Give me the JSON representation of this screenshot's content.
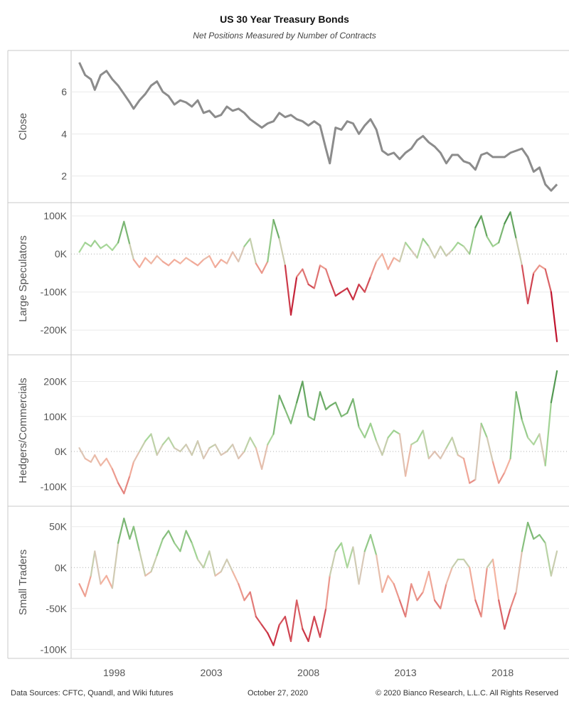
{
  "title": "US 30 Year Treasury Bonds",
  "subtitle": "Net Positions Measured by Number of Contracts",
  "footer": {
    "sources": "Data Sources: CFTC, Quandl, and Wiki futures",
    "date": "October 27, 2020",
    "copyright": "© 2020 Bianco Research, L.L.C. All Rights Reserved"
  },
  "colors": {
    "close_line": "#8c8c8c",
    "positive_dark": "#2e7d32",
    "positive_light": "#a8d89a",
    "negative_light": "#f4b3a0",
    "negative_dark": "#c0142e",
    "neutral": "#d8c8b8",
    "grid": "#eaeaea",
    "zero_line": "#b0b0b0"
  },
  "chart_data": [
    {
      "type": "line",
      "ylabel": "Close",
      "ylim": [
        1,
        7.7
      ],
      "yticks": [
        2,
        4,
        6
      ],
      "ytick_labels": [
        "2",
        "4",
        "6"
      ],
      "xlim": [
        1996.0,
        2021.2
      ],
      "color_mode": "solid",
      "x": [
        1996.2,
        1996.5,
        1996.8,
        1997.0,
        1997.3,
        1997.6,
        1997.9,
        1998.2,
        1998.5,
        1998.8,
        1999.0,
        1999.3,
        1999.6,
        1999.9,
        2000.2,
        2000.5,
        2000.8,
        2001.1,
        2001.4,
        2001.7,
        2002.0,
        2002.3,
        2002.6,
        2002.9,
        2003.2,
        2003.5,
        2003.8,
        2004.1,
        2004.4,
        2004.7,
        2005.0,
        2005.3,
        2005.6,
        2005.9,
        2006.2,
        2006.5,
        2006.8,
        2007.1,
        2007.4,
        2007.7,
        2008.0,
        2008.3,
        2008.6,
        2008.9,
        2009.1,
        2009.4,
        2009.7,
        2010.0,
        2010.3,
        2010.6,
        2010.9,
        2011.2,
        2011.5,
        2011.8,
        2012.1,
        2012.4,
        2012.7,
        2013.0,
        2013.3,
        2013.6,
        2013.9,
        2014.2,
        2014.5,
        2014.8,
        2015.1,
        2015.4,
        2015.7,
        2016.0,
        2016.3,
        2016.6,
        2016.9,
        2017.2,
        2017.5,
        2017.8,
        2018.1,
        2018.4,
        2018.7,
        2019.0,
        2019.3,
        2019.6,
        2019.9,
        2020.2,
        2020.5,
        2020.8
      ],
      "values": [
        7.4,
        6.8,
        6.6,
        6.1,
        6.8,
        7.0,
        6.6,
        6.3,
        5.9,
        5.5,
        5.2,
        5.6,
        5.9,
        6.3,
        6.5,
        6.0,
        5.8,
        5.4,
        5.6,
        5.5,
        5.3,
        5.6,
        5.0,
        5.1,
        4.8,
        4.9,
        5.3,
        5.1,
        5.2,
        5.0,
        4.7,
        4.5,
        4.3,
        4.5,
        4.6,
        5.0,
        4.8,
        4.9,
        4.7,
        4.6,
        4.4,
        4.6,
        4.4,
        3.3,
        2.6,
        4.3,
        4.2,
        4.6,
        4.5,
        4.0,
        4.4,
        4.7,
        4.2,
        3.2,
        3.0,
        3.1,
        2.8,
        3.1,
        3.3,
        3.7,
        3.9,
        3.6,
        3.4,
        3.1,
        2.6,
        3.0,
        3.0,
        2.7,
        2.6,
        2.3,
        3.0,
        3.1,
        2.9,
        2.9,
        2.9,
        3.1,
        3.2,
        3.3,
        2.9,
        2.2,
        2.4,
        1.6,
        1.3,
        1.6
      ]
    },
    {
      "type": "line",
      "ylabel": "Large Speculators",
      "ylim": [
        -250000,
        120000
      ],
      "yticks": [
        100000,
        0,
        -100000,
        -200000
      ],
      "ytick_labels": [
        "100K",
        "0K",
        "-100K",
        "-200K"
      ],
      "xlim": [
        1996.0,
        2021.2
      ],
      "color_mode": "diverging",
      "cmax": 120000,
      "x": [
        1996.2,
        1996.5,
        1996.8,
        1997.0,
        1997.3,
        1997.6,
        1997.9,
        1998.2,
        1998.5,
        1998.8,
        1999.0,
        1999.3,
        1999.6,
        1999.9,
        2000.2,
        2000.5,
        2000.8,
        2001.1,
        2001.4,
        2001.7,
        2002.0,
        2002.3,
        2002.6,
        2002.9,
        2003.2,
        2003.5,
        2003.8,
        2004.1,
        2004.4,
        2004.7,
        2005.0,
        2005.3,
        2005.6,
        2005.9,
        2006.2,
        2006.5,
        2006.8,
        2007.1,
        2007.4,
        2007.7,
        2008.0,
        2008.3,
        2008.6,
        2008.9,
        2009.1,
        2009.4,
        2009.7,
        2010.0,
        2010.3,
        2010.6,
        2010.9,
        2011.2,
        2011.5,
        2011.8,
        2012.1,
        2012.4,
        2012.7,
        2013.0,
        2013.3,
        2013.6,
        2013.9,
        2014.2,
        2014.5,
        2014.8,
        2015.1,
        2015.4,
        2015.7,
        2016.0,
        2016.3,
        2016.6,
        2016.9,
        2017.2,
        2017.5,
        2017.8,
        2018.1,
        2018.4,
        2018.7,
        2019.0,
        2019.3,
        2019.6,
        2019.9,
        2020.2,
        2020.5,
        2020.8
      ],
      "values": [
        5000,
        30000,
        20000,
        35000,
        15000,
        25000,
        10000,
        30000,
        85000,
        25000,
        -15000,
        -35000,
        -10000,
        -25000,
        -5000,
        -20000,
        -30000,
        -15000,
        -25000,
        -10000,
        -20000,
        -30000,
        -15000,
        -5000,
        -35000,
        -15000,
        -25000,
        5000,
        -20000,
        20000,
        40000,
        -25000,
        -50000,
        -20000,
        90000,
        40000,
        -30000,
        -160000,
        -60000,
        -40000,
        -80000,
        -90000,
        -30000,
        -40000,
        -70000,
        -110000,
        -100000,
        -90000,
        -120000,
        -80000,
        -100000,
        -60000,
        -20000,
        0,
        -40000,
        -10000,
        -20000,
        30000,
        10000,
        -10000,
        40000,
        20000,
        -10000,
        20000,
        -5000,
        10000,
        30000,
        20000,
        0,
        70000,
        100000,
        45000,
        20000,
        30000,
        80000,
        110000,
        40000,
        -30000,
        -130000,
        -50000,
        -30000,
        -40000,
        -100000,
        -230000
      ]
    },
    {
      "type": "line",
      "ylabel": "Hedgers/Commercials",
      "ylim": [
        -140000,
        260000
      ],
      "yticks": [
        200000,
        100000,
        0,
        -100000
      ],
      "ytick_labels": [
        "200K",
        "100K",
        "0K",
        "-100K"
      ],
      "xlim": [
        1996.0,
        2021.2
      ],
      "color_mode": "diverging",
      "cmax": 250000,
      "x": [
        1996.2,
        1996.5,
        1996.8,
        1997.0,
        1997.3,
        1997.6,
        1997.9,
        1998.2,
        1998.5,
        1998.8,
        1999.0,
        1999.3,
        1999.6,
        1999.9,
        2000.2,
        2000.5,
        2000.8,
        2001.1,
        2001.4,
        2001.7,
        2002.0,
        2002.3,
        2002.6,
        2002.9,
        2003.2,
        2003.5,
        2003.8,
        2004.1,
        2004.4,
        2004.7,
        2005.0,
        2005.3,
        2005.6,
        2005.9,
        2006.2,
        2006.5,
        2006.8,
        2007.1,
        2007.4,
        2007.7,
        2008.0,
        2008.3,
        2008.6,
        2008.9,
        2009.1,
        2009.4,
        2009.7,
        2010.0,
        2010.3,
        2010.6,
        2010.9,
        2011.2,
        2011.5,
        2011.8,
        2012.1,
        2012.4,
        2012.7,
        2013.0,
        2013.3,
        2013.6,
        2013.9,
        2014.2,
        2014.5,
        2014.8,
        2015.1,
        2015.4,
        2015.7,
        2016.0,
        2016.3,
        2016.6,
        2016.9,
        2017.2,
        2017.5,
        2017.8,
        2018.1,
        2018.4,
        2018.7,
        2019.0,
        2019.3,
        2019.6,
        2019.9,
        2020.2,
        2020.5,
        2020.8
      ],
      "values": [
        10000,
        -20000,
        -30000,
        -10000,
        -40000,
        -20000,
        -50000,
        -90000,
        -120000,
        -70000,
        -30000,
        0,
        30000,
        50000,
        -10000,
        20000,
        40000,
        10000,
        0,
        20000,
        -10000,
        30000,
        -20000,
        10000,
        20000,
        -10000,
        0,
        20000,
        -20000,
        0,
        40000,
        10000,
        -50000,
        20000,
        50000,
        160000,
        120000,
        80000,
        140000,
        200000,
        100000,
        90000,
        170000,
        120000,
        130000,
        140000,
        100000,
        110000,
        150000,
        70000,
        40000,
        80000,
        30000,
        -10000,
        40000,
        60000,
        50000,
        -70000,
        20000,
        30000,
        60000,
        -20000,
        0,
        -20000,
        10000,
        40000,
        -10000,
        -20000,
        -90000,
        -80000,
        80000,
        40000,
        -30000,
        -90000,
        -60000,
        -20000,
        170000,
        90000,
        40000,
        20000,
        50000,
        -40000,
        140000,
        230000
      ]
    },
    {
      "type": "line",
      "ylabel": "Small Traders",
      "ylim": [
        -104000,
        68000
      ],
      "yticks": [
        50000,
        0,
        -50000,
        -100000
      ],
      "ytick_labels": [
        "50K",
        "0K",
        "-50K",
        "-100K"
      ],
      "xlim": [
        1996.0,
        2021.2
      ],
      "color_mode": "diverging",
      "cmax": 100000,
      "x": [
        1996.2,
        1996.5,
        1996.8,
        1997.0,
        1997.3,
        1997.6,
        1997.9,
        1998.2,
        1998.5,
        1998.8,
        1999.0,
        1999.3,
        1999.6,
        1999.9,
        2000.2,
        2000.5,
        2000.8,
        2001.1,
        2001.4,
        2001.7,
        2002.0,
        2002.3,
        2002.6,
        2002.9,
        2003.2,
        2003.5,
        2003.8,
        2004.1,
        2004.4,
        2004.7,
        2005.0,
        2005.3,
        2005.6,
        2005.9,
        2006.2,
        2006.5,
        2006.8,
        2007.1,
        2007.4,
        2007.7,
        2008.0,
        2008.3,
        2008.6,
        2008.9,
        2009.1,
        2009.4,
        2009.7,
        2010.0,
        2010.3,
        2010.6,
        2010.9,
        2011.2,
        2011.5,
        2011.8,
        2012.1,
        2012.4,
        2012.7,
        2013.0,
        2013.3,
        2013.6,
        2013.9,
        2014.2,
        2014.5,
        2014.8,
        2015.1,
        2015.4,
        2015.7,
        2016.0,
        2016.3,
        2016.6,
        2016.9,
        2017.2,
        2017.5,
        2017.8,
        2018.1,
        2018.4,
        2018.7,
        2019.0,
        2019.3,
        2019.6,
        2019.9,
        2020.2,
        2020.5,
        2020.8
      ],
      "values": [
        -20000,
        -35000,
        -10000,
        20000,
        -20000,
        -10000,
        -25000,
        30000,
        60000,
        35000,
        50000,
        20000,
        -10000,
        -5000,
        15000,
        35000,
        45000,
        30000,
        20000,
        45000,
        30000,
        10000,
        0,
        20000,
        -10000,
        -5000,
        10000,
        -5000,
        -20000,
        -40000,
        -30000,
        -60000,
        -70000,
        -80000,
        -95000,
        -70000,
        -60000,
        -90000,
        -40000,
        -75000,
        -90000,
        -60000,
        -85000,
        -50000,
        -10000,
        20000,
        30000,
        0,
        25000,
        -20000,
        20000,
        40000,
        15000,
        -30000,
        -10000,
        -20000,
        -40000,
        -60000,
        -20000,
        -40000,
        -30000,
        -5000,
        -40000,
        -50000,
        -20000,
        0,
        10000,
        10000,
        0,
        -40000,
        -60000,
        0,
        10000,
        -40000,
        -75000,
        -50000,
        -30000,
        20000,
        55000,
        35000,
        40000,
        30000,
        -10000,
        20000
      ]
    }
  ],
  "x_axis": {
    "ticks": [
      1998,
      2003,
      2008,
      2013,
      2018
    ],
    "tick_labels": [
      "1998",
      "2003",
      "2008",
      "2013",
      "2018"
    ]
  }
}
